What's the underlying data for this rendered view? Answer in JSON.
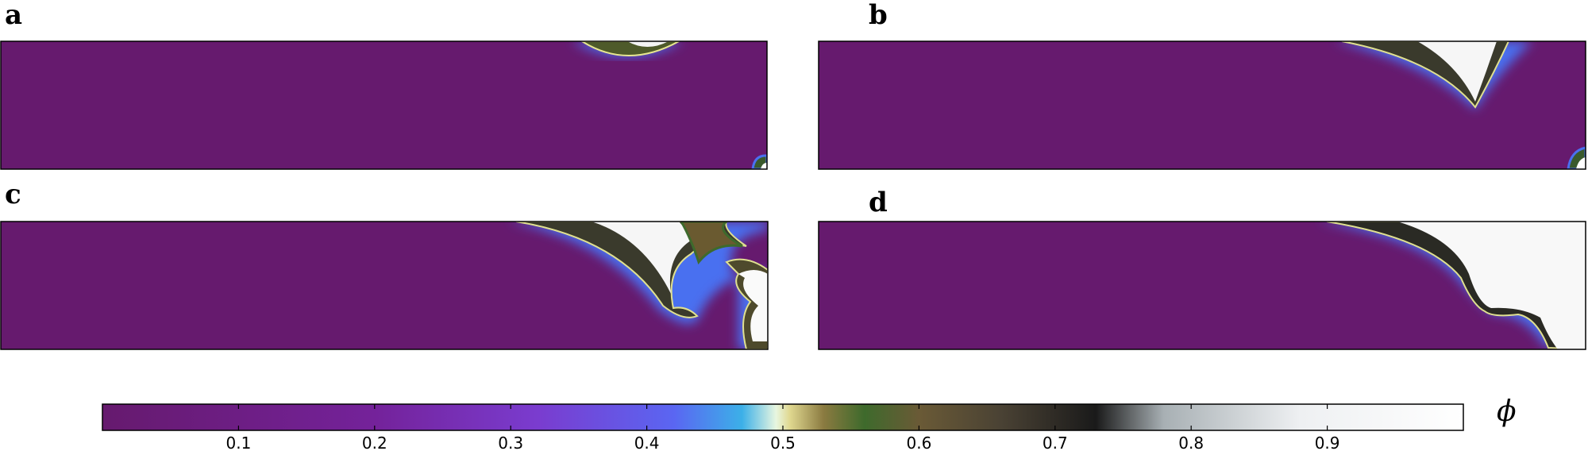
{
  "panels": [
    {
      "label": "a"
    },
    {
      "label": "b"
    },
    {
      "label": "c"
    },
    {
      "label": "d"
    }
  ],
  "colorbar": {
    "label": "ϕ",
    "range": [
      0,
      1
    ],
    "ticks": [
      0.1,
      0.2,
      0.3,
      0.4,
      0.5,
      0.6,
      0.7,
      0.8,
      0.9
    ]
  }
}
